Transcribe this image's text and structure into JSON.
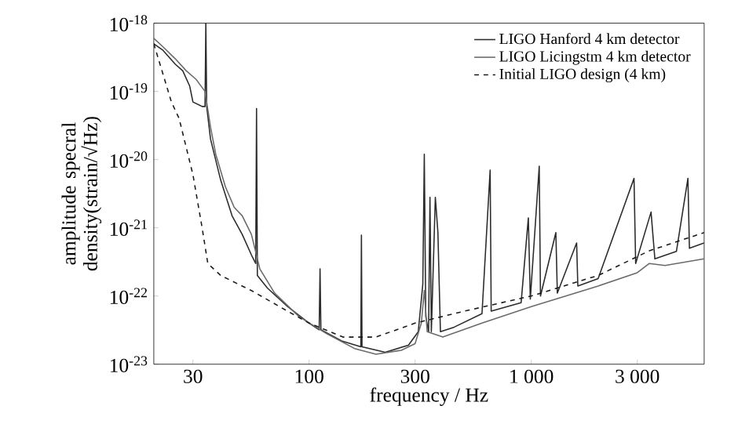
{
  "chart_data": {
    "type": "line",
    "xlabel": "frequency / Hz",
    "ylabel": "amplitude specral density(strain/√Hz)",
    "log": "xy",
    "xlim": [
      20,
      6000
    ],
    "ylim": [
      1e-23,
      1e-18
    ],
    "xticks": [
      30,
      100,
      300,
      {
        "value": 1000,
        "label": "1 000"
      },
      {
        "value": 3000,
        "label": "3 000"
      }
    ],
    "yticks": [
      {
        "value": 1e-23,
        "label": "10$^{-23}$"
      },
      {
        "value": 1e-22,
        "label": "10$^{-22}$"
      },
      {
        "value": 1e-21,
        "label": "10$^{-21}$"
      },
      {
        "value": 1e-20,
        "label": "10$^{-20}$"
      },
      {
        "value": 1e-19,
        "label": "10$^{-19}$"
      },
      {
        "value": 1e-18,
        "label": "10$^{-18}$"
      }
    ],
    "legend": "top right",
    "marker": "none",
    "series": [
      {
        "name": "LIGO Hanford 4 km detector",
        "color": "#2b2b2b",
        "line_style": "solid",
        "x": [
          20,
          22,
          25,
          27,
          29,
          30,
          33,
          34,
          34.3,
          34.6,
          36,
          40,
          45,
          50,
          55,
          57.5,
          58,
          58.5,
          65,
          80,
          100,
          111,
          112,
          113,
          140,
          171,
          172,
          173,
          220,
          280,
          310,
          325,
          330,
          335,
          345,
          350,
          355,
          370,
          380,
          390,
          450,
          600,
          653,
          660,
          900,
          970,
          990,
          1086,
          1100,
          1290,
          1310,
          1600,
          1620,
          2000,
          2900,
          2950,
          3460,
          3600,
          4500,
          5070,
          5150,
          6000
        ],
        "values": [
          5e-19,
          4e-19,
          2.5e-19,
          2e-19,
          1.2e-19,
          7e-20,
          6e-20,
          6e-20,
          1e-18,
          6e-20,
          2e-20,
          5e-21,
          1.5e-21,
          8e-22,
          4e-22,
          3e-22,
          5.6e-20,
          2e-22,
          1.3e-22,
          7e-23,
          4e-23,
          3.2e-23,
          2.5e-22,
          3.2e-23,
          2.2e-23,
          1.8e-23,
          7.8e-22,
          1.8e-23,
          1.5e-23,
          1.9e-23,
          3e-23,
          1.5e-22,
          1.2e-20,
          5e-23,
          3e-23,
          2.8e-21,
          3e-23,
          2.8e-21,
          8.5e-22,
          3e-23,
          3.5e-23,
          5.5e-23,
          7e-21,
          6e-23,
          8e-23,
          1.4e-21,
          9e-23,
          8e-21,
          1e-22,
          8.5e-22,
          1.1e-22,
          6e-22,
          1.4e-22,
          1.8e-22,
          5.3e-21,
          3e-22,
          1.7e-21,
          3.5e-22,
          4.5e-22,
          5.3e-21,
          5e-22,
          6e-22
        ]
      },
      {
        "name": "LIGO Licingstm 4 km detector",
        "color": "#6a6a6a",
        "line_style": "solid",
        "x": [
          20,
          22,
          25,
          28,
          31,
          34,
          36,
          38,
          42,
          46,
          50,
          55,
          60,
          70,
          90,
          120,
          160,
          200,
          260,
          300,
          320,
          330,
          340,
          400,
          600,
          1000,
          2000,
          3000,
          3400,
          4000,
          6000
        ],
        "values": [
          6e-19,
          4.5e-19,
          3e-19,
          2e-19,
          1.5e-19,
          1e-19,
          3e-20,
          1.2e-20,
          4e-21,
          2e-21,
          1.5e-21,
          8e-22,
          2.5e-22,
          1.1e-22,
          5e-23,
          2.8e-23,
          1.7e-23,
          1.4e-23,
          1.6e-23,
          2e-23,
          4e-23,
          1.2e-22,
          3e-23,
          2.5e-23,
          4e-23,
          7e-23,
          1.4e-22,
          2.2e-22,
          3e-22,
          2.8e-22,
          3.5e-22
        ]
      },
      {
        "name": "Initial LIGO design (4 km)",
        "color": "#1a1a1a",
        "line_style": "dashed",
        "x": [
          20,
          24,
          26,
          30,
          33,
          35,
          40,
          55,
          80,
          100,
          142,
          200,
          300,
          500,
          1000,
          2000,
          3400,
          6000
        ],
        "values": [
          5e-19,
          7e-20,
          4e-20,
          6e-21,
          1e-21,
          3e-22,
          2e-22,
          1.2e-22,
          6e-23,
          4e-23,
          2.5e-23,
          2.5e-23,
          4e-23,
          6e-23,
          1e-22,
          2e-22,
          4.6e-22,
          8.5e-22
        ]
      }
    ]
  }
}
